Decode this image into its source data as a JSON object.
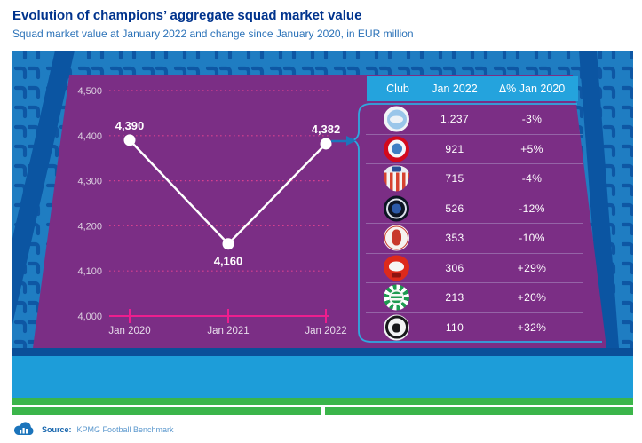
{
  "header": {
    "title": "Evolution of champions’ aggregate squad market value",
    "subtitle": "Squad market value at January 2022 and change since January 2020, in EUR million"
  },
  "chart_data": {
    "type": "line",
    "x": [
      "Jan 2020",
      "Jan 2021",
      "Jan 2022"
    ],
    "values": [
      4390,
      4160,
      4382
    ],
    "labels": [
      "4,390",
      "4,160",
      "4,382"
    ],
    "ylim": [
      4000,
      4500
    ],
    "yticks": [
      "4,500",
      "4,400",
      "4,300",
      "4,200",
      "4,100",
      "4,000"
    ],
    "grid": "horizontal dotted magenta, solid baseline at 4,000",
    "legend": "none",
    "series_color": "#FFFFFF",
    "unit": "EUR million"
  },
  "table": {
    "headers": [
      "Club",
      "Jan 2022",
      "Δ% Jan 2020"
    ],
    "rows": [
      {
        "club": "Manchester City",
        "crest": "manchester-city",
        "value": "1,237",
        "delta": "-3%"
      },
      {
        "club": "Bayern Munich",
        "crest": "bayern-munich",
        "value": "921",
        "delta": "+5%"
      },
      {
        "club": "Atlético Madrid",
        "crest": "atletico-madrid",
        "value": "715",
        "delta": "-4%"
      },
      {
        "club": "Inter Milan",
        "crest": "inter-milan",
        "value": "526",
        "delta": "-12%"
      },
      {
        "club": "Ajax",
        "crest": "ajax",
        "value": "353",
        "delta": "-10%"
      },
      {
        "club": "Lille",
        "crest": "lille",
        "value": "306",
        "delta": "+29%"
      },
      {
        "club": "Sporting CP",
        "crest": "sporting-cp",
        "value": "213",
        "delta": "+20%"
      },
      {
        "club": "Beşiktaş",
        "crest": "besiktas",
        "value": "110",
        "delta": "+32%"
      }
    ]
  },
  "footer": {
    "source_label": "Source:",
    "source_text": "KPMG Football Benchmark"
  },
  "colors": {
    "title_blue": "#00338D",
    "subtitle_blue": "#2B72B8",
    "stand_blue": "#1F7DC2",
    "seat_blue": "#0E57A4",
    "aisle_blue": "#0B55A2",
    "pitch_purple": "#7B2E85",
    "magenta": "#ED1E8E",
    "header_band_blue": "#24A3DD",
    "lower_stand_blue": "#1D9DD9",
    "dark_strip_blue": "#0A4F99",
    "pitch_green": "#3BB54A",
    "line_white": "#FFFFFF",
    "arrow_blue": "#1B75BC",
    "callout_border_blue": "#2FA8DF"
  }
}
